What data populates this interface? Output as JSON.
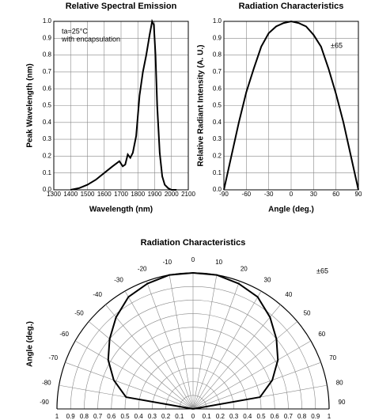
{
  "chart_data": [
    {
      "type": "line",
      "title": "Relative Spectral Emission",
      "xlabel": "Wavelength (nm)",
      "ylabel": "Peak Wavelength (nm)",
      "annotations": [
        "ta=25°C",
        "with encapsulation"
      ],
      "x": [
        1400,
        1450,
        1500,
        1550,
        1600,
        1650,
        1690,
        1710,
        1725,
        1740,
        1755,
        1770,
        1790,
        1810,
        1830,
        1850,
        1870,
        1885,
        1895,
        1905,
        1915,
        1930,
        1945,
        1960,
        1980,
        2000,
        2030
      ],
      "values": [
        0,
        0.01,
        0.03,
        0.06,
        0.1,
        0.14,
        0.17,
        0.14,
        0.15,
        0.21,
        0.19,
        0.22,
        0.32,
        0.56,
        0.7,
        0.8,
        0.92,
        1.0,
        0.98,
        0.8,
        0.5,
        0.22,
        0.08,
        0.03,
        0.01,
        0,
        0
      ],
      "color": "#000000",
      "xlim": [
        1300,
        2100
      ],
      "xticks": [
        1300,
        1400,
        1500,
        1600,
        1700,
        1800,
        1900,
        2000,
        2100
      ],
      "ylim": [
        0,
        1
      ],
      "yticks": [
        {
          "value": 0,
          "label": "0.0"
        },
        0.1,
        0.2,
        0.3,
        0.4,
        0.5,
        0.6,
        0.7,
        0.8,
        0.9,
        {
          "value": 1,
          "label": "1.0"
        }
      ],
      "grid": true
    },
    {
      "type": "line",
      "title": "Radiation Characteristics",
      "xlabel": "Angle (deg.)",
      "ylabel": "Relative Radiant Intensity (A. U.)",
      "annotations": [
        "±65"
      ],
      "x": [
        -90,
        -85,
        -80,
        -70,
        -60,
        -50,
        -40,
        -30,
        -20,
        -10,
        0,
        10,
        20,
        30,
        40,
        50,
        60,
        70,
        80,
        85,
        90
      ],
      "values": [
        0,
        0.1,
        0.2,
        0.4,
        0.58,
        0.72,
        0.85,
        0.93,
        0.97,
        0.99,
        1.0,
        0.99,
        0.97,
        0.92,
        0.85,
        0.72,
        0.57,
        0.4,
        0.2,
        0.1,
        0
      ],
      "color": "#000000",
      "xlim": [
        -90,
        90
      ],
      "xticks": [
        -90,
        -60,
        -30,
        0,
        30,
        60,
        90
      ],
      "ylim": [
        0,
        1
      ],
      "yticks": [
        {
          "value": 0,
          "label": "0.0"
        },
        0.1,
        0.2,
        0.3,
        0.4,
        0.5,
        0.6,
        0.7,
        0.8,
        0.9,
        {
          "value": 1,
          "label": "1.0"
        }
      ],
      "grid": true
    },
    {
      "type": "polar",
      "title": "Radiation Characteristics",
      "ylabel": "Angle (deg.)",
      "annotations": [
        "±65"
      ],
      "theta": [
        -90,
        -80,
        -70,
        -60,
        -50,
        -40,
        -30,
        -20,
        -10,
        0,
        10,
        20,
        30,
        40,
        50,
        60,
        70,
        80,
        90
      ],
      "values": [
        0,
        0.5,
        0.62,
        0.72,
        0.8,
        0.88,
        0.95,
        0.98,
        1.0,
        1.0,
        1.0,
        0.98,
        0.95,
        0.88,
        0.8,
        0.72,
        0.62,
        0.5,
        0
      ],
      "color": "#000000",
      "rlim": [
        0,
        1
      ],
      "rticks": [
        0,
        0.1,
        0.2,
        0.3,
        0.4,
        0.5,
        0.6,
        0.7,
        0.8,
        0.9,
        1
      ],
      "thetaticks": [
        -90,
        -80,
        -70,
        -60,
        -50,
        -40,
        -30,
        -20,
        -10,
        0,
        10,
        20,
        30,
        40,
        50,
        60,
        70,
        80,
        90
      ],
      "grid": true
    }
  ]
}
